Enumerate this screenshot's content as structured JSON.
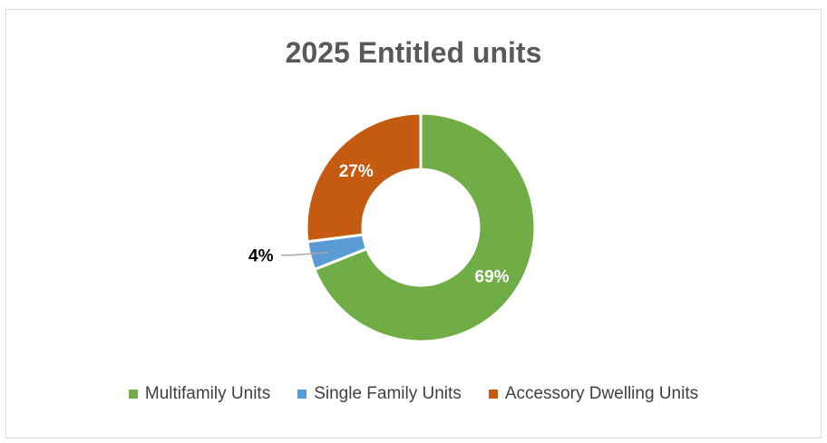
{
  "chart_data": {
    "type": "pie",
    "variant": "doughnut",
    "title": "2025 Entitled units",
    "categories": [
      "Multifamily Units",
      "Single Family Units",
      "Accessory Dwelling Units"
    ],
    "values": [
      69,
      4,
      27
    ],
    "labels": [
      "69%",
      "4%",
      "27%"
    ],
    "colors": [
      "#70ad47",
      "#5b9bd5",
      "#c55a11"
    ],
    "label_colors": [
      "#ffffff",
      "#000000",
      "#ffffff"
    ],
    "legend_position": "bottom"
  }
}
